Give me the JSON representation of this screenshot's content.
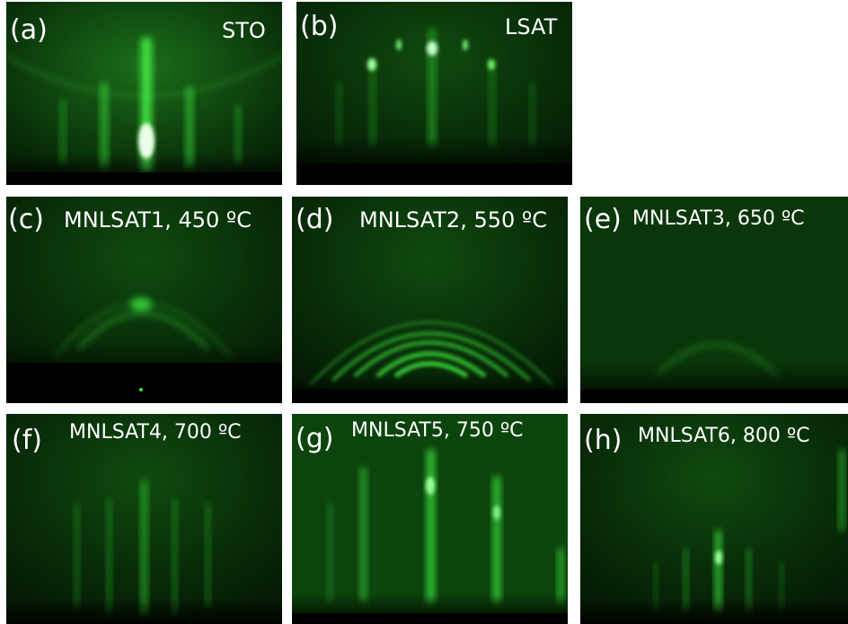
{
  "panels": [
    {
      "id": "a",
      "label": "(a)",
      "caption": "STO"
    },
    {
      "id": "b",
      "label": "(b)",
      "caption": "LSAT"
    },
    {
      "id": "c",
      "label": "(c)",
      "caption": "MNLSAT1, 450 ºC"
    },
    {
      "id": "d",
      "label": "(d)",
      "caption": "MNLSAT2, 550 ºC"
    },
    {
      "id": "e",
      "label": "(e)",
      "caption": "MNLSAT3, 650 ºC"
    },
    {
      "id": "f",
      "label": "(f)",
      "caption": "MNLSAT4, 700 ºC"
    },
    {
      "id": "g",
      "label": "(g)",
      "caption": "MNLSAT5, 750 ºC"
    },
    {
      "id": "h",
      "label": "(h)",
      "caption": "MNLSAT6, 800 ºC"
    }
  ],
  "colors": {
    "phosphor": "#39e639",
    "background": "#062806",
    "shadow": "#000000"
  }
}
